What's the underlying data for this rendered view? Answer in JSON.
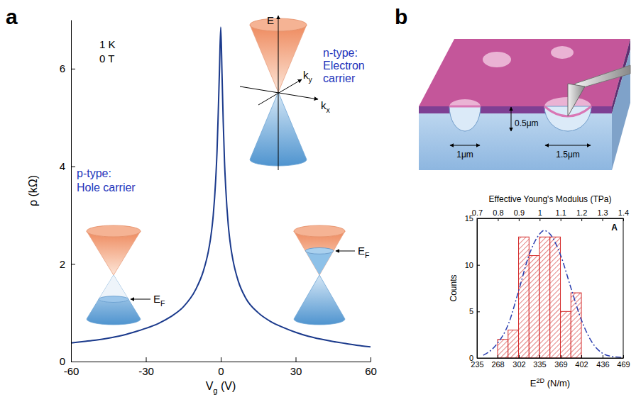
{
  "panel_labels": [
    "a",
    "b"
  ],
  "chart_data": [
    {
      "type": "line",
      "x": [
        -60,
        -55,
        -50,
        -45,
        -40,
        -35,
        -30,
        -25,
        -20,
        -15,
        -10,
        -7,
        -5,
        -4,
        -3,
        -2,
        -1.5,
        -1,
        -0.5,
        0,
        0.5,
        1,
        1.5,
        2,
        3,
        4,
        5,
        7,
        10,
        15,
        20,
        25,
        30,
        35,
        40,
        45,
        50,
        55,
        60
      ],
      "values": [
        0.38,
        0.41,
        0.44,
        0.48,
        0.53,
        0.6,
        0.68,
        0.78,
        0.92,
        1.12,
        1.48,
        1.85,
        2.25,
        2.55,
        3.0,
        3.75,
        4.3,
        5.1,
        6.0,
        6.85,
        5.9,
        4.9,
        4.1,
        3.55,
        2.8,
        2.35,
        2.05,
        1.65,
        1.3,
        1.0,
        0.82,
        0.7,
        0.6,
        0.52,
        0.46,
        0.41,
        0.37,
        0.33,
        0.3
      ],
      "color": "#1b3a8c",
      "xlim": [
        -60,
        60
      ],
      "xticks": [
        -60,
        -30,
        0,
        30,
        60
      ],
      "ylim": [
        0,
        7
      ],
      "yticks": [
        0,
        2,
        4,
        6
      ],
      "xlabel": {
        "text": "V",
        "sub": "g",
        "tail": " (V)"
      },
      "ylabel": "ρ (kΩ)",
      "annotations": [
        {
          "text": "1 K"
        },
        {
          "text": "0 T"
        },
        {
          "lines": [
            "n-type:",
            "Electron",
            "carrier"
          ]
        },
        {
          "lines": [
            "p-type:",
            "Hole carrier"
          ]
        },
        {
          "text": "E"
        },
        {
          "text": "k",
          "sub": "y"
        },
        {
          "text": "k",
          "sub": "x"
        },
        {
          "text": "E",
          "sub": "F"
        },
        {
          "text": "E",
          "sub": "F"
        }
      ]
    },
    {
      "type": "histogram",
      "bins": [
        268,
        284.75,
        301.5,
        318.25,
        335,
        351.75,
        368.5,
        385.25,
        402
      ],
      "counts": [
        2,
        3,
        13,
        11,
        13,
        13,
        5,
        7
      ],
      "color": "#d42a2a",
      "xlim": [
        235,
        469
      ],
      "xticks": [
        235,
        268,
        302,
        335,
        369,
        402,
        436,
        469
      ],
      "x2lim": [
        0.7,
        1.4
      ],
      "x2ticks": [
        0.7,
        0.8,
        0.9,
        1,
        1.1,
        1.2,
        1.3,
        1.4
      ],
      "ylim": [
        0,
        15
      ],
      "yticks": [
        0,
        5,
        10,
        15
      ],
      "xlabel": {
        "text": "E",
        "sup": "2D",
        "tail": " (N/m)"
      },
      "x2label": "Effective Young's Modulus (TPa)",
      "ylabel": "Counts",
      "annotations": [
        {
          "text": "A"
        }
      ],
      "series": [
        {
          "type": "line",
          "x": [
            245,
            255,
            268,
            285,
            302,
            318,
            335,
            342,
            352,
            369,
            385,
            402,
            419,
            436,
            452,
            469
          ],
          "values": [
            0.3,
            0.7,
            1.6,
            3.6,
            7.3,
            11,
            13.3,
            13.7,
            13.3,
            11,
            7.6,
            4.1,
            1.7,
            0.5,
            0.15,
            0.05
          ],
          "color": "#2b3fb0",
          "line_style": "dashdot"
        }
      ]
    }
  ],
  "diagram": {
    "labels": [
      "0.5μm",
      "1μm",
      "1.5μm"
    ]
  }
}
